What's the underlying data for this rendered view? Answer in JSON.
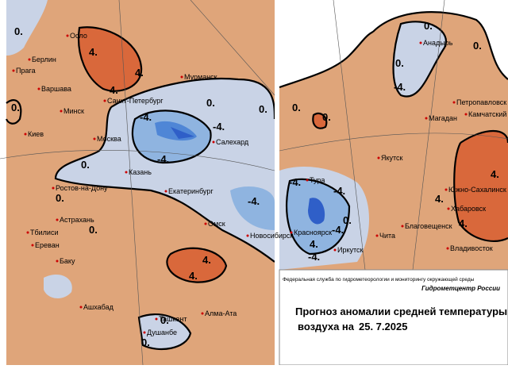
{
  "left_map": {
    "cities": [
      "Осло",
      "Берлин",
      "Прага",
      "Варшава",
      "Минск",
      "Киев",
      "Санкт-Петербург",
      "Мурманск",
      "Москва",
      "Салехард",
      "Казань",
      "Екатеринбург",
      "Ростов-на-Дону",
      "Астрахань",
      "Тбилиси",
      "Ереван",
      "Баку",
      "Омск",
      "Новосибирск",
      "Ашхабад",
      "Ташкент",
      "Алма-Ата",
      "Душанбе"
    ],
    "contour_labels": [
      "0.",
      "4.",
      "4.",
      "4.",
      "0.",
      "0.",
      "-4.",
      "-4.",
      "0.",
      "0.",
      "-4.",
      "0.",
      "-4.",
      "0.",
      "4.",
      "4.",
      "0.",
      "0."
    ]
  },
  "right_map": {
    "cities": [
      "Анадырь",
      "Петропавловск",
      "Камчатский",
      "Магадан",
      "Якутск",
      "Тура",
      "Южно-Сахалинск",
      "Хабаровск",
      "Благовещенск",
      "Красноярск",
      "Чита",
      "Иркутск",
      "Владивосток"
    ],
    "contour_labels": [
      "0.",
      "0.",
      "-4.",
      "0.",
      "0.",
      "0.",
      "4.",
      "4.",
      "-4.",
      "-4.",
      "4.",
      "0.",
      "-4.",
      "4.",
      "-4."
    ]
  },
  "legend": {
    "agency": "Федеральная служба по гидрометеорологии и мониторингу окружающей среды",
    "center": "Гидрометцентр России",
    "title": "Прогноз аномалии средней температуры",
    "date_prefix": "воздуха на",
    "date": "25. 7.2025"
  }
}
